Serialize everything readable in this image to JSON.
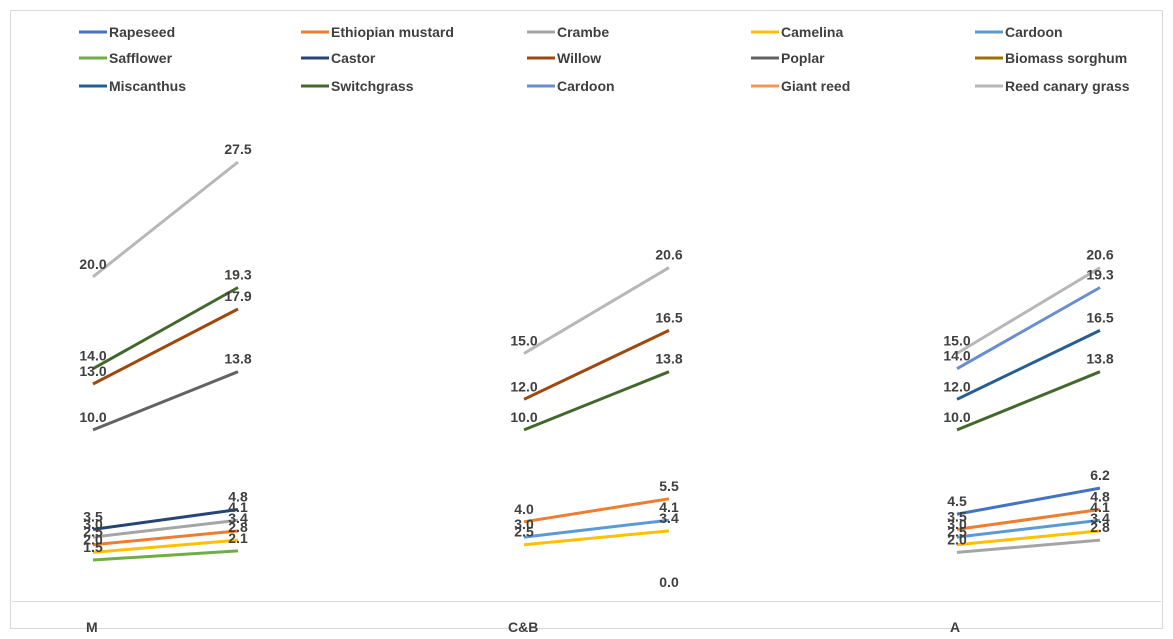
{
  "chart_data": {
    "type": "line",
    "title": "",
    "xlabel": "",
    "ylabel": "",
    "ylim": [
      0,
      30
    ],
    "grid": false,
    "legend_position": "top",
    "categories": [
      "M",
      "C&B",
      "A"
    ],
    "legend": [
      {
        "name": "Rapeseed",
        "color": "#4472c4"
      },
      {
        "name": "Ethiopian mustard",
        "color": "#ed7d31"
      },
      {
        "name": "Crambe",
        "color": "#a5a5a5"
      },
      {
        "name": "Camelina",
        "color": "#ffc000"
      },
      {
        "name": "Cardoon",
        "color": "#5b9bd5"
      },
      {
        "name": "Safflower",
        "color": "#70ad47"
      },
      {
        "name": "Castor",
        "color": "#264478"
      },
      {
        "name": "Willow",
        "color": "#9e480e"
      },
      {
        "name": "Poplar",
        "color": "#636363"
      },
      {
        "name": "Biomass sorghum",
        "color": "#997300"
      },
      {
        "name": "Miscanthus",
        "color": "#255e91"
      },
      {
        "name": "Switchgrass",
        "color": "#43682b"
      },
      {
        "name": "Cardoon",
        "color": "#698ed0"
      },
      {
        "name": "Giant reed",
        "color": "#f1975a"
      },
      {
        "name": "Reed canary grass",
        "color": "#b7b7b7"
      }
    ],
    "segments": [
      {
        "category": 0,
        "color": "#b7b7b7",
        "values": [
          20.0,
          27.5
        ]
      },
      {
        "category": 0,
        "color": "#43682b",
        "values": [
          14.0,
          19.3
        ]
      },
      {
        "category": 0,
        "color": "#9e480e",
        "values": [
          13.0,
          17.9
        ]
      },
      {
        "category": 0,
        "color": "#636363",
        "values": [
          10.0,
          13.8
        ]
      },
      {
        "category": 0,
        "color": "#264478",
        "values": [
          3.5,
          4.8
        ]
      },
      {
        "category": 0,
        "color": "#a5a5a5",
        "values": [
          3.0,
          4.1
        ]
      },
      {
        "category": 0,
        "color": "#ed7d31",
        "values": [
          2.5,
          3.4
        ]
      },
      {
        "category": 0,
        "color": "#ffc000",
        "values": [
          2.0,
          2.8
        ]
      },
      {
        "category": 0,
        "color": "#70ad47",
        "values": [
          1.5,
          2.1
        ]
      },
      {
        "category": 1,
        "color": "#b7b7b7",
        "values": [
          15.0,
          20.6
        ]
      },
      {
        "category": 1,
        "color": "#9e480e",
        "values": [
          12.0,
          16.5
        ]
      },
      {
        "category": 1,
        "color": "#43682b",
        "values": [
          10.0,
          13.8
        ]
      },
      {
        "category": 1,
        "color": "#ed7d31",
        "values": [
          4.0,
          5.5
        ]
      },
      {
        "category": 1,
        "color": "#5b9bd5",
        "values": [
          3.0,
          4.1
        ]
      },
      {
        "category": 1,
        "color": "#ffc000",
        "values": [
          2.5,
          3.4
        ]
      },
      {
        "category": 2,
        "color": "#b7b7b7",
        "values": [
          15.0,
          20.6
        ]
      },
      {
        "category": 2,
        "color": "#698ed0",
        "values": [
          14.0,
          19.3
        ]
      },
      {
        "category": 2,
        "color": "#255e91",
        "values": [
          12.0,
          16.5
        ]
      },
      {
        "category": 2,
        "color": "#43682b",
        "values": [
          10.0,
          13.8
        ]
      },
      {
        "category": 2,
        "color": "#4472c4",
        "values": [
          4.5,
          6.2
        ]
      },
      {
        "category": 2,
        "color": "#ed7d31",
        "values": [
          3.5,
          4.8
        ]
      },
      {
        "category": 2,
        "color": "#5b9bd5",
        "values": [
          3.0,
          4.1
        ]
      },
      {
        "category": 2,
        "color": "#ffc000",
        "values": [
          2.5,
          3.4
        ]
      },
      {
        "category": 2,
        "color": "#a5a5a5",
        "values": [
          2.0,
          2.8
        ]
      }
    ],
    "data_labels": [
      {
        "category": 0,
        "side": "start",
        "text": "20.0",
        "value": 20.0
      },
      {
        "category": 0,
        "side": "start",
        "text": "14.0",
        "value": 14.0
      },
      {
        "category": 0,
        "side": "start",
        "text": "13.0",
        "value": 13.0
      },
      {
        "category": 0,
        "side": "start",
        "text": "10.0",
        "value": 10.0
      },
      {
        "category": 0,
        "side": "start",
        "text": "3.5",
        "value": 3.5
      },
      {
        "category": 0,
        "side": "start",
        "text": "3.0",
        "value": 3.0
      },
      {
        "category": 0,
        "side": "start",
        "text": "2.5",
        "value": 2.5
      },
      {
        "category": 0,
        "side": "start",
        "text": "2.0",
        "value": 2.0
      },
      {
        "category": 0,
        "side": "start",
        "text": "1.5",
        "value": 1.5
      },
      {
        "category": 0,
        "side": "end",
        "text": "27.5",
        "value": 27.5
      },
      {
        "category": 0,
        "side": "end",
        "text": "19.3",
        "value": 19.3
      },
      {
        "category": 0,
        "side": "end",
        "text": "17.9",
        "value": 17.9
      },
      {
        "category": 0,
        "side": "end",
        "text": "13.8",
        "value": 13.8
      },
      {
        "category": 0,
        "side": "end",
        "text": "4.8",
        "value": 4.8
      },
      {
        "category": 0,
        "side": "end",
        "text": "4.1",
        "value": 4.1
      },
      {
        "category": 0,
        "side": "end",
        "text": "3.4",
        "value": 3.4
      },
      {
        "category": 0,
        "side": "end",
        "text": "2.8",
        "value": 2.8
      },
      {
        "category": 0,
        "side": "end",
        "text": "2.1",
        "value": 2.1
      },
      {
        "category": 1,
        "side": "start",
        "text": "15.0",
        "value": 15.0
      },
      {
        "category": 1,
        "side": "start",
        "text": "12.0",
        "value": 12.0
      },
      {
        "category": 1,
        "side": "start",
        "text": "10.0",
        "value": 10.0
      },
      {
        "category": 1,
        "side": "start",
        "text": "4.0",
        "value": 4.0
      },
      {
        "category": 1,
        "side": "start",
        "text": "3.0",
        "value": 3.0
      },
      {
        "category": 1,
        "side": "start",
        "text": "2.5",
        "value": 2.5
      },
      {
        "category": 1,
        "side": "end",
        "text": "20.6",
        "value": 20.6
      },
      {
        "category": 1,
        "side": "end",
        "text": "16.5",
        "value": 16.5
      },
      {
        "category": 1,
        "side": "end",
        "text": "13.8",
        "value": 13.8
      },
      {
        "category": 1,
        "side": "end",
        "text": "5.5",
        "value": 5.5
      },
      {
        "category": 1,
        "side": "end",
        "text": "4.1",
        "value": 4.1
      },
      {
        "category": 1,
        "side": "end",
        "text": "3.4",
        "value": 3.4
      },
      {
        "category": 1,
        "side": "end",
        "text": "0.0",
        "value": 0.0
      },
      {
        "category": 2,
        "side": "start",
        "text": "15.0",
        "value": 15.0
      },
      {
        "category": 2,
        "side": "start",
        "text": "14.0",
        "value": 14.0
      },
      {
        "category": 2,
        "side": "start",
        "text": "12.0",
        "value": 12.0
      },
      {
        "category": 2,
        "side": "start",
        "text": "10.0",
        "value": 10.0
      },
      {
        "category": 2,
        "side": "start",
        "text": "4.5",
        "value": 4.5
      },
      {
        "category": 2,
        "side": "start",
        "text": "3.5",
        "value": 3.5
      },
      {
        "category": 2,
        "side": "start",
        "text": "3.0",
        "value": 3.0
      },
      {
        "category": 2,
        "side": "start",
        "text": "2.5",
        "value": 2.5
      },
      {
        "category": 2,
        "side": "start",
        "text": "2.0",
        "value": 2.0
      },
      {
        "category": 2,
        "side": "end",
        "text": "20.6",
        "value": 20.6
      },
      {
        "category": 2,
        "side": "end",
        "text": "19.3",
        "value": 19.3
      },
      {
        "category": 2,
        "side": "end",
        "text": "16.5",
        "value": 16.5
      },
      {
        "category": 2,
        "side": "end",
        "text": "13.8",
        "value": 13.8
      },
      {
        "category": 2,
        "side": "end",
        "text": "6.2",
        "value": 6.2
      },
      {
        "category": 2,
        "side": "end",
        "text": "4.8",
        "value": 4.8
      },
      {
        "category": 2,
        "side": "end",
        "text": "4.1",
        "value": 4.1
      },
      {
        "category": 2,
        "side": "end",
        "text": "3.4",
        "value": 3.4
      },
      {
        "category": 2,
        "side": "end",
        "text": "2.8",
        "value": 2.8
      }
    ]
  }
}
